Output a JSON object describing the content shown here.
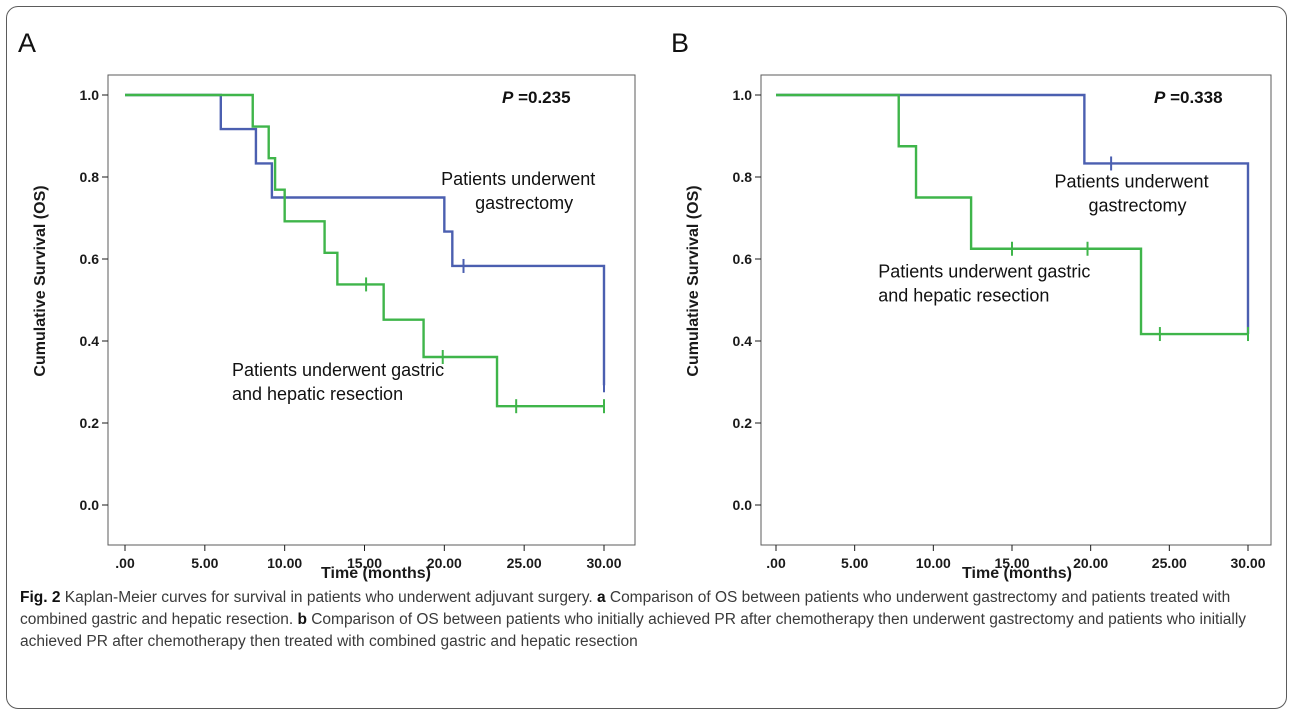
{
  "caption": {
    "fig_label": "Fig. 2",
    "intro": " Kaplan-Meier curves for survival in patients who underwent adjuvant surgery. ",
    "a_label": "a",
    "a_text": " Comparison of OS between patients who underwent gastrectomy and patients treated with combined gastric and hepatic resection. ",
    "b_label": "b",
    "b_text": " Comparison of OS between patients who initially achieved PR after chemotherapy then underwent gastrectomy and patients who initially achieved PR after chemotherapy then treated with combined gastric and hepatic resection"
  },
  "colors": {
    "blue": "#4b5fb0",
    "green": "#3fb54a",
    "axis": "#1a1a1a",
    "border": "#5b5b5b"
  },
  "chart_data": [
    {
      "panel": "A",
      "type": "line",
      "step": true,
      "p_italic": "P",
      "p_value": " =0.235",
      "xlabel": "Time (months)",
      "ylabel": "Cumulative Survival (OS)",
      "xlim": [
        0,
        30
      ],
      "ylim": [
        0,
        1
      ],
      "xticks": [
        0,
        5,
        10,
        15,
        20,
        25,
        30
      ],
      "xtick_labels": [
        ".00",
        "5.00",
        "10.00",
        "15.00",
        "20.00",
        "25.00",
        "30.00"
      ],
      "yticks": [
        0,
        0.2,
        0.4,
        0.6,
        0.8,
        1.0
      ],
      "ytick_labels": [
        "0.0",
        "0.2",
        "0.4",
        "0.6",
        "0.8",
        "1.0"
      ],
      "series": [
        {
          "color": "blue",
          "x": [
            0,
            6.0,
            8.2,
            9.2,
            20.0,
            20.5,
            30.0
          ],
          "y": [
            1.0,
            0.917,
            0.833,
            0.75,
            0.667,
            0.583,
            0.292
          ],
          "censored": [
            [
              21.2,
              0.583
            ],
            [
              30.0,
              0.292
            ]
          ]
        },
        {
          "color": "green",
          "x": [
            0,
            8.0,
            9.0,
            9.4,
            10.0,
            12.5,
            13.3,
            16.2,
            18.7,
            23.3,
            30.0
          ],
          "y": [
            1.0,
            0.923,
            0.846,
            0.769,
            0.692,
            0.615,
            0.538,
            0.452,
            0.361,
            0.241,
            0.241
          ],
          "censored": [
            [
              15.1,
              0.538
            ],
            [
              19.9,
              0.361
            ],
            [
              24.5,
              0.241
            ],
            [
              30.0,
              0.241
            ]
          ]
        }
      ],
      "annotations": [
        {
          "lines": [
            "Patients underwent",
            "gastrectomy"
          ],
          "x": 19.8,
          "y": 0.78,
          "color": "blue"
        },
        {
          "lines": [
            "Patients underwent gastric",
            "and hepatic resection"
          ],
          "x": 6.7,
          "y": 0.315,
          "color": "green"
        }
      ]
    },
    {
      "panel": "B",
      "type": "line",
      "step": true,
      "p_italic": "P",
      "p_value": " =0.338",
      "xlabel": "Time (months)",
      "ylabel": "Cumulative Survival (OS)",
      "xlim": [
        0,
        30
      ],
      "ylim": [
        0,
        1
      ],
      "xticks": [
        0,
        5,
        10,
        15,
        20,
        25,
        30
      ],
      "xtick_labels": [
        ".00",
        "5.00",
        "10.00",
        "15.00",
        "20.00",
        "25.00",
        "30.00"
      ],
      "yticks": [
        0,
        0.2,
        0.4,
        0.6,
        0.8,
        1.0
      ],
      "ytick_labels": [
        "0.0",
        "0.2",
        "0.4",
        "0.6",
        "0.8",
        "1.0"
      ],
      "series": [
        {
          "color": "blue",
          "x": [
            0,
            19.6,
            30.0
          ],
          "y": [
            1.0,
            0.833,
            0.417
          ],
          "censored": [
            [
              21.3,
              0.833
            ]
          ]
        },
        {
          "color": "green",
          "x": [
            0,
            7.8,
            8.9,
            12.4,
            23.2,
            30.0
          ],
          "y": [
            1.0,
            0.875,
            0.75,
            0.625,
            0.417,
            0.417
          ],
          "censored": [
            [
              15.0,
              0.625
            ],
            [
              19.8,
              0.625
            ],
            [
              24.4,
              0.417
            ],
            [
              30.0,
              0.417
            ]
          ]
        }
      ],
      "annotations": [
        {
          "lines": [
            "Patients underwent",
            "gastrectomy"
          ],
          "x": 17.7,
          "y": 0.775,
          "color": "blue"
        },
        {
          "lines": [
            "Patients underwent gastric",
            "and hepatic resection"
          ],
          "x": 6.5,
          "y": 0.555,
          "color": "green"
        }
      ]
    }
  ]
}
